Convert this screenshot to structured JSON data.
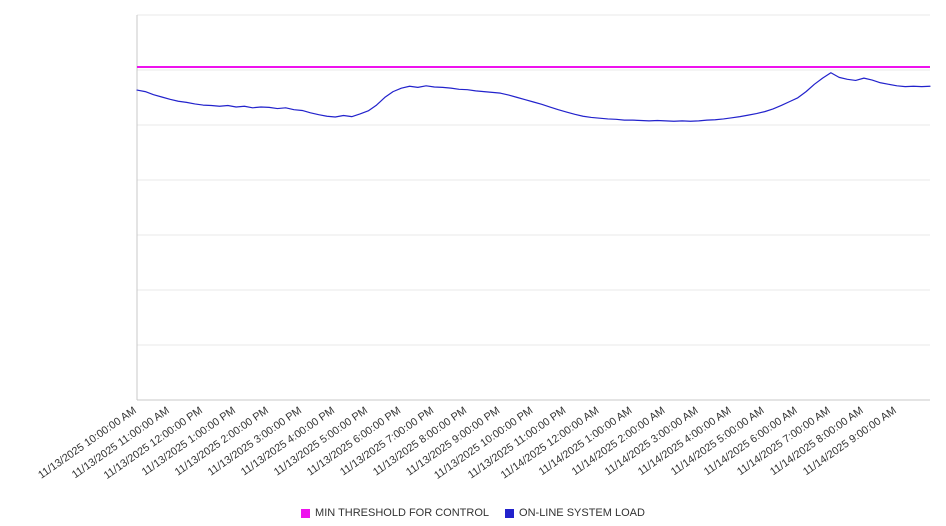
{
  "legend": {
    "threshold_label": "MIN THRESHOLD FOR CONTROL",
    "load_label": "ON-LINE SYSTEM LOAD"
  },
  "colors": {
    "threshold": "#ee11ee",
    "load": "#2222cc",
    "grid": "#e8e8e8",
    "axis": "#c9c9c9",
    "tick_text": "#333333"
  },
  "chart_data": {
    "type": "line",
    "title": "",
    "xlabel": "",
    "ylabel": "",
    "ylim": [
      0,
      100
    ],
    "y_axis_labels_visible": false,
    "grid": true,
    "legend_position": "bottom",
    "x_tick_labels": [
      "11/13/2025 10:00:00 AM",
      "11/13/2025 11:00:00 AM",
      "11/13/2025 12:00:00 PM",
      "11/13/2025 1:00:00 PM",
      "11/13/2025 2:00:00 PM",
      "11/13/2025 3:00:00 PM",
      "11/13/2025 4:00:00 PM",
      "11/13/2025 5:00:00 PM",
      "11/13/2025 6:00:00 PM",
      "11/13/2025 7:00:00 PM",
      "11/13/2025 8:00:00 PM",
      "11/13/2025 9:00:00 PM",
      "11/13/2025 10:00:00 PM",
      "11/13/2025 11:00:00 PM",
      "11/14/2025 12:00:00 AM",
      "11/14/2025 1:00:00 AM",
      "11/14/2025 2:00:00 AM",
      "11/14/2025 3:00:00 AM",
      "11/14/2025 4:00:00 AM",
      "11/14/2025 5:00:00 AM",
      "11/14/2025 6:00:00 AM",
      "11/14/2025 7:00:00 AM",
      "11/14/2025 8:00:00 AM",
      "11/14/2025 9:00:00 AM"
    ],
    "series": [
      {
        "name": "MIN THRESHOLD FOR CONTROL",
        "type": "threshold-line",
        "value": 86.5,
        "color": "#ee11ee"
      },
      {
        "name": "ON-LINE SYSTEM LOAD",
        "type": "line",
        "color": "#2222cc",
        "points_per_hour": 4,
        "values": [
          80.5,
          80.1,
          79.3,
          78.7,
          78.1,
          77.6,
          77.3,
          76.9,
          76.6,
          76.5,
          76.3,
          76.5,
          76.1,
          76.3,
          75.9,
          76.1,
          76.0,
          75.7,
          75.9,
          75.4,
          75.2,
          74.6,
          74.1,
          73.7,
          73.5,
          73.9,
          73.6,
          74.3,
          75.1,
          76.6,
          78.6,
          80.1,
          81.0,
          81.5,
          81.2,
          81.6,
          81.3,
          81.2,
          81.0,
          80.7,
          80.6,
          80.3,
          80.1,
          79.9,
          79.7,
          79.2,
          78.6,
          78.0,
          77.4,
          76.8,
          76.1,
          75.4,
          74.8,
          74.2,
          73.7,
          73.4,
          73.2,
          73.0,
          72.9,
          72.7,
          72.7,
          72.6,
          72.5,
          72.6,
          72.5,
          72.4,
          72.5,
          72.4,
          72.5,
          72.7,
          72.8,
          73.0,
          73.3,
          73.6,
          74.0,
          74.4,
          74.9,
          75.6,
          76.5,
          77.5,
          78.5,
          80.1,
          82.0,
          83.6,
          85.0,
          83.8,
          83.3,
          83.0,
          83.6,
          83.1,
          82.4,
          82.0,
          81.6,
          81.4,
          81.5,
          81.4,
          81.5
        ]
      }
    ]
  }
}
